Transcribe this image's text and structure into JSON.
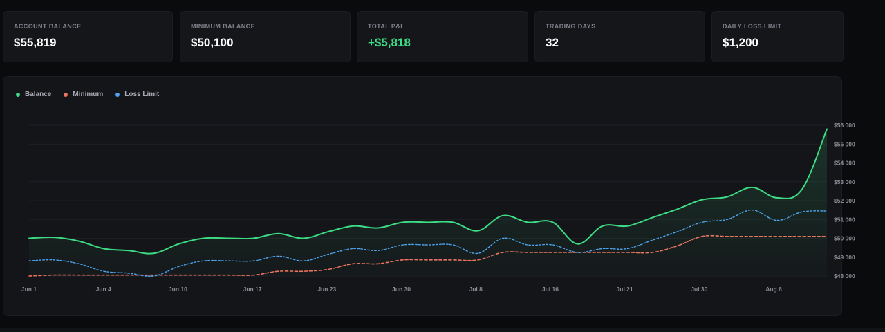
{
  "stats": [
    {
      "label": "ACCOUNT BALANCE",
      "value": "$55,819",
      "tone": "neutral"
    },
    {
      "label": "MINIMUM BALANCE",
      "value": "$50,100",
      "tone": "neutral"
    },
    {
      "label": "TOTAL P&L",
      "value": "+$5,818",
      "tone": "positive"
    },
    {
      "label": "TRADING DAYS",
      "value": "32",
      "tone": "neutral"
    },
    {
      "label": "DAILY LOSS LIMIT",
      "value": "$1,200",
      "tone": "neutral"
    }
  ],
  "colors": {
    "balance": "#3ddc84",
    "minimum": "#f0715f",
    "loss_limit": "#4ea3f5",
    "positive": "#3ddc84"
  },
  "chart_data": {
    "type": "line",
    "legend_position": "top-left",
    "grid": true,
    "x_tick_labels": [
      "Jun 1",
      "Jun 4",
      "Jun 10",
      "Jun 17",
      "Jun 23",
      "Jun 30",
      "Jul 8",
      "Jul 16",
      "Jul 21",
      "Jul 30",
      "Aug 6"
    ],
    "y_tick_labels": [
      "$48 000",
      "$49 000",
      "$50 000",
      "$51 000",
      "$52 000",
      "$53 000",
      "$54 000",
      "$55 000",
      "$56 000"
    ],
    "ylim": [
      48000,
      56000
    ],
    "series": [
      {
        "name": "Balance",
        "key": "balance",
        "style": "solid-area",
        "values": [
          50000,
          50050,
          49850,
          49450,
          49350,
          49200,
          49700,
          50000,
          50000,
          50000,
          50250,
          50000,
          50350,
          50650,
          50550,
          50850,
          50850,
          50850,
          50400,
          51200,
          50850,
          50850,
          49700,
          50650,
          50650,
          51100,
          51550,
          52050,
          52200,
          52700,
          52150,
          52600,
          55800
        ]
      },
      {
        "name": "Minimum",
        "key": "minimum",
        "style": "dashed",
        "values": [
          48000,
          48050,
          48050,
          48050,
          48050,
          48050,
          48050,
          48050,
          48050,
          48050,
          48250,
          48250,
          48350,
          48650,
          48650,
          48850,
          48850,
          48850,
          48850,
          49250,
          49250,
          49250,
          49250,
          49250,
          49250,
          49250,
          49600,
          50100,
          50100,
          50100,
          50100,
          50100,
          50100
        ]
      },
      {
        "name": "Loss Limit",
        "key": "loss_limit",
        "style": "dotted",
        "values": [
          48800,
          48850,
          48650,
          48250,
          48150,
          48000,
          48500,
          48800,
          48800,
          48800,
          49050,
          48800,
          49150,
          49450,
          49350,
          49650,
          49650,
          49650,
          49200,
          50000,
          49650,
          49650,
          49250,
          49450,
          49450,
          49900,
          50350,
          50850,
          51000,
          51500,
          50950,
          51400,
          51450
        ]
      }
    ]
  }
}
